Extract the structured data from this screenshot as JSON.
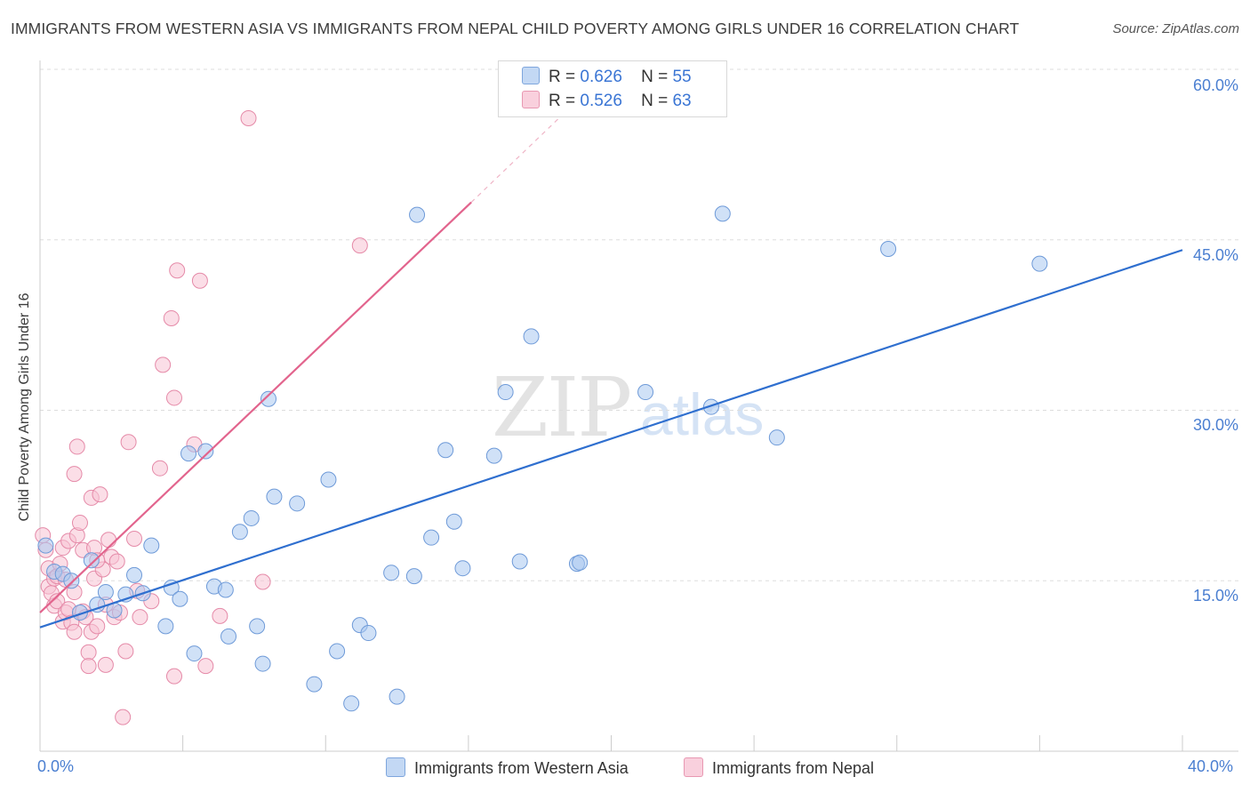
{
  "header": {
    "title": "IMMIGRANTS FROM WESTERN ASIA VS IMMIGRANTS FROM NEPAL CHILD POVERTY AMONG GIRLS UNDER 16 CORRELATION CHART",
    "source": "Source: ZipAtlas.com"
  },
  "watermark": {
    "zip": "ZIP",
    "atlas": "atlas"
  },
  "legend": {
    "r_label": "R =",
    "n_label": "N =",
    "blue": {
      "r": "0.626",
      "n": "55"
    },
    "pink": {
      "r": "0.526",
      "n": "63"
    }
  },
  "colors": {
    "blue_fill": "#aac8f0",
    "blue_stroke": "#6e9ad8",
    "blue_line": "#2f6fcf",
    "pink_fill": "#f7c3d3",
    "pink_stroke": "#e58aa8",
    "pink_line": "#e2648d",
    "grid": "#dddddd",
    "tick_text": "#4b7fd1"
  },
  "chart_data": {
    "type": "scatter",
    "title": "IMMIGRANTS FROM WESTERN ASIA VS IMMIGRANTS FROM NEPAL CHILD POVERTY AMONG GIRLS UNDER 16 CORRELATION CHART",
    "xlabel": "",
    "ylabel": "Child Poverty Among Girls Under 16",
    "xlim": [
      0,
      40
    ],
    "ylim": [
      0,
      60
    ],
    "x_ticks": [
      "0.0%",
      "40.0%"
    ],
    "y_ticks": [
      "15.0%",
      "30.0%",
      "45.0%",
      "60.0%"
    ],
    "y_tick_values": [
      15,
      30,
      45,
      60
    ],
    "grid": "horizontal dashed",
    "legend_position": "top-center",
    "series": [
      {
        "name": "Immigrants from Western Asia",
        "color": "#aac8f0",
        "trend": {
          "x": [
            0,
            40
          ],
          "y": [
            10.9,
            44.1
          ]
        },
        "points": [
          [
            0.2,
            18.1
          ],
          [
            0.5,
            15.8
          ],
          [
            0.8,
            15.6
          ],
          [
            1.1,
            15.0
          ],
          [
            1.4,
            12.2
          ],
          [
            1.8,
            16.8
          ],
          [
            2.0,
            12.9
          ],
          [
            2.3,
            14.0
          ],
          [
            2.6,
            12.4
          ],
          [
            3.0,
            13.8
          ],
          [
            3.3,
            15.5
          ],
          [
            3.6,
            13.9
          ],
          [
            3.9,
            18.1
          ],
          [
            4.4,
            11.0
          ],
          [
            4.6,
            14.4
          ],
          [
            4.9,
            13.4
          ],
          [
            5.2,
            26.2
          ],
          [
            5.4,
            8.6
          ],
          [
            5.8,
            26.4
          ],
          [
            6.1,
            14.5
          ],
          [
            6.5,
            14.2
          ],
          [
            6.6,
            10.1
          ],
          [
            7.0,
            19.3
          ],
          [
            7.4,
            20.5
          ],
          [
            7.6,
            11.0
          ],
          [
            7.8,
            7.7
          ],
          [
            8.0,
            31.0
          ],
          [
            8.2,
            22.4
          ],
          [
            9.0,
            21.8
          ],
          [
            9.6,
            5.9
          ],
          [
            10.1,
            23.9
          ],
          [
            10.4,
            8.8
          ],
          [
            10.9,
            4.2
          ],
          [
            11.2,
            11.1
          ],
          [
            11.5,
            10.4
          ],
          [
            12.3,
            15.7
          ],
          [
            12.5,
            4.8
          ],
          [
            13.1,
            15.4
          ],
          [
            13.2,
            47.2
          ],
          [
            13.7,
            18.8
          ],
          [
            14.2,
            26.5
          ],
          [
            14.5,
            20.2
          ],
          [
            14.8,
            16.1
          ],
          [
            15.9,
            26.0
          ],
          [
            16.3,
            31.6
          ],
          [
            16.8,
            16.7
          ],
          [
            17.2,
            36.5
          ],
          [
            18.8,
            16.5
          ],
          [
            18.9,
            16.6
          ],
          [
            21.2,
            31.6
          ],
          [
            23.5,
            30.3
          ],
          [
            23.9,
            47.3
          ],
          [
            25.8,
            27.6
          ],
          [
            29.7,
            44.2
          ],
          [
            35.0,
            42.9
          ]
        ]
      },
      {
        "name": "Immigrants from Nepal",
        "color": "#f7c3d3",
        "trend": {
          "x": [
            0,
            15.1
          ],
          "y": [
            12.2,
            48.3
          ]
        },
        "trend_dashed": {
          "x": [
            15.1,
            18.5
          ],
          "y": [
            48.3,
            56.5
          ]
        },
        "points": [
          [
            0.1,
            19.0
          ],
          [
            0.2,
            17.7
          ],
          [
            0.3,
            16.1
          ],
          [
            0.3,
            14.5
          ],
          [
            0.4,
            13.9
          ],
          [
            0.5,
            15.2
          ],
          [
            0.5,
            12.8
          ],
          [
            0.6,
            15.4
          ],
          [
            0.6,
            13.2
          ],
          [
            0.7,
            16.5
          ],
          [
            0.8,
            11.4
          ],
          [
            0.8,
            17.9
          ],
          [
            0.9,
            12.2
          ],
          [
            0.9,
            15.1
          ],
          [
            1.0,
            18.5
          ],
          [
            1.0,
            12.5
          ],
          [
            1.1,
            11.3
          ],
          [
            1.2,
            24.4
          ],
          [
            1.2,
            10.5
          ],
          [
            1.3,
            19.0
          ],
          [
            1.3,
            26.8
          ],
          [
            1.4,
            20.1
          ],
          [
            1.5,
            12.3
          ],
          [
            1.5,
            17.7
          ],
          [
            1.6,
            11.8
          ],
          [
            1.7,
            8.7
          ],
          [
            1.7,
            7.5
          ],
          [
            1.8,
            22.3
          ],
          [
            1.8,
            10.5
          ],
          [
            1.9,
            15.2
          ],
          [
            1.9,
            17.9
          ],
          [
            2.0,
            11.0
          ],
          [
            2.1,
            22.6
          ],
          [
            2.2,
            16.0
          ],
          [
            2.3,
            7.6
          ],
          [
            2.3,
            12.9
          ],
          [
            2.4,
            18.6
          ],
          [
            2.5,
            17.1
          ],
          [
            2.6,
            11.8
          ],
          [
            2.7,
            16.7
          ],
          [
            2.8,
            12.2
          ],
          [
            2.9,
            3.0
          ],
          [
            3.0,
            8.8
          ],
          [
            3.1,
            27.2
          ],
          [
            3.3,
            18.7
          ],
          [
            3.4,
            14.1
          ],
          [
            3.5,
            11.8
          ],
          [
            3.9,
            13.2
          ],
          [
            4.2,
            24.9
          ],
          [
            4.3,
            34.0
          ],
          [
            4.6,
            38.1
          ],
          [
            4.7,
            31.1
          ],
          [
            4.7,
            6.6
          ],
          [
            4.8,
            42.3
          ],
          [
            5.4,
            27.0
          ],
          [
            5.6,
            41.4
          ],
          [
            5.8,
            7.5
          ],
          [
            6.3,
            11.9
          ],
          [
            7.3,
            55.7
          ],
          [
            7.8,
            14.9
          ],
          [
            11.2,
            44.5
          ],
          [
            2.0,
            16.8
          ],
          [
            1.2,
            14.0
          ]
        ]
      }
    ]
  },
  "axes": {
    "ylabel": "Child Poverty Among Girls Under 16",
    "y_ticks": [
      "15.0%",
      "30.0%",
      "45.0%",
      "60.0%"
    ],
    "x_left": "0.0%",
    "x_right": "40.0%"
  },
  "bottom_legend": {
    "blue_label": "Immigrants from Western Asia",
    "pink_label": "Immigrants from Nepal"
  }
}
